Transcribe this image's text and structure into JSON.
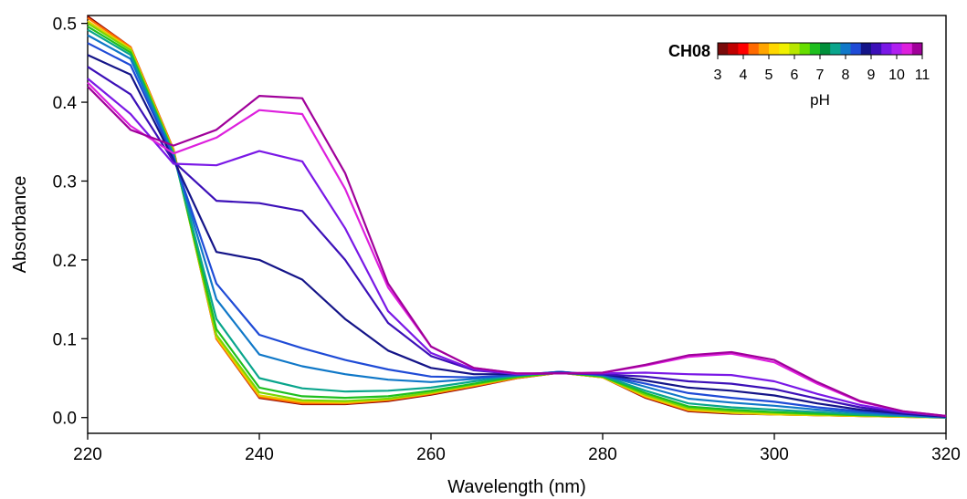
{
  "chart_data": {
    "type": "line",
    "xlabel": "Wavelength (nm)",
    "ylabel": "Absorbance",
    "xlim": [
      220,
      320
    ],
    "ylim": [
      -0.02,
      0.51
    ],
    "xticks": [
      220,
      240,
      260,
      280,
      300,
      320
    ],
    "xtick_labels": [
      "220",
      "240",
      "260",
      "280",
      "300",
      "320"
    ],
    "yticks": [
      0.0,
      0.1,
      0.2,
      0.3,
      0.4,
      0.5
    ],
    "ytick_labels": [
      "0.0",
      "0.1",
      "0.2",
      "0.3",
      "0.4",
      "0.5"
    ],
    "grid": false,
    "legend": {
      "type": "colorbar",
      "placement": "top-right",
      "label": "CH08",
      "title": "pH",
      "ticks": [
        3,
        4,
        5,
        6,
        7,
        8,
        9,
        10,
        11
      ],
      "tick_labels": [
        "3",
        "4",
        "5",
        "6",
        "7",
        "8",
        "9",
        "10",
        "11"
      ],
      "colors": [
        "#7a0a0a",
        "#c00000",
        "#ff0000",
        "#ff6a00",
        "#ffa500",
        "#ffd700",
        "#f0f000",
        "#b8e600",
        "#66dd00",
        "#1fbf1f",
        "#008f3a",
        "#0aa58c",
        "#1078c8",
        "#1f4bd6",
        "#141488",
        "#3c10b8",
        "#7a18e6",
        "#b020f0",
        "#dd20dd",
        "#a0009a"
      ]
    },
    "series": [
      {
        "color": "#8b0000",
        "x": [
          220,
          225,
          230,
          235,
          240,
          245,
          250,
          255,
          260,
          265,
          270,
          275,
          280,
          285,
          290,
          295,
          300,
          305,
          310,
          315,
          320
        ],
        "y": [
          0.509,
          0.47,
          0.34,
          0.1,
          0.025,
          0.017,
          0.017,
          0.021,
          0.029,
          0.039,
          0.05,
          0.057,
          0.051,
          0.025,
          0.008,
          0.005,
          0.004,
          0.003,
          0.002,
          0.001,
          0.0
        ]
      },
      {
        "color": "#ff6a00",
        "x": [
          220,
          225,
          230,
          235,
          240,
          245,
          250,
          255,
          260,
          265,
          270,
          275,
          280,
          285,
          290,
          295,
          300,
          305,
          310,
          315,
          320
        ],
        "y": [
          0.507,
          0.47,
          0.34,
          0.1,
          0.026,
          0.018,
          0.018,
          0.022,
          0.03,
          0.04,
          0.05,
          0.057,
          0.051,
          0.026,
          0.009,
          0.006,
          0.004,
          0.003,
          0.002,
          0.001,
          0.0
        ]
      },
      {
        "color": "#e6d000",
        "x": [
          220,
          225,
          230,
          235,
          240,
          245,
          250,
          255,
          260,
          265,
          270,
          275,
          280,
          285,
          290,
          295,
          300,
          305,
          310,
          315,
          320
        ],
        "y": [
          0.503,
          0.468,
          0.338,
          0.102,
          0.028,
          0.02,
          0.019,
          0.023,
          0.031,
          0.041,
          0.051,
          0.057,
          0.051,
          0.027,
          0.01,
          0.006,
          0.004,
          0.003,
          0.002,
          0.001,
          0.0
        ]
      },
      {
        "color": "#7ad600",
        "x": [
          220,
          225,
          230,
          235,
          240,
          245,
          250,
          255,
          260,
          265,
          270,
          275,
          280,
          285,
          290,
          295,
          300,
          305,
          310,
          315,
          320
        ],
        "y": [
          0.5,
          0.466,
          0.337,
          0.105,
          0.032,
          0.022,
          0.021,
          0.024,
          0.032,
          0.042,
          0.051,
          0.057,
          0.052,
          0.029,
          0.012,
          0.008,
          0.006,
          0.004,
          0.003,
          0.002,
          0.0
        ]
      },
      {
        "color": "#1fbf1f",
        "x": [
          220,
          225,
          230,
          235,
          240,
          245,
          250,
          255,
          260,
          265,
          270,
          275,
          280,
          285,
          290,
          295,
          300,
          305,
          310,
          315,
          320
        ],
        "y": [
          0.496,
          0.463,
          0.335,
          0.112,
          0.038,
          0.027,
          0.025,
          0.027,
          0.034,
          0.043,
          0.052,
          0.057,
          0.052,
          0.031,
          0.014,
          0.01,
          0.007,
          0.005,
          0.003,
          0.002,
          0.0
        ]
      },
      {
        "color": "#0aa58c",
        "x": [
          220,
          225,
          230,
          235,
          240,
          245,
          250,
          255,
          260,
          265,
          270,
          275,
          280,
          285,
          290,
          295,
          300,
          305,
          310,
          315,
          320
        ],
        "y": [
          0.492,
          0.46,
          0.334,
          0.125,
          0.05,
          0.037,
          0.033,
          0.034,
          0.038,
          0.046,
          0.053,
          0.058,
          0.053,
          0.034,
          0.018,
          0.013,
          0.01,
          0.007,
          0.004,
          0.002,
          0.0
        ]
      },
      {
        "color": "#1078c8",
        "x": [
          220,
          225,
          230,
          235,
          240,
          245,
          250,
          255,
          260,
          265,
          270,
          275,
          280,
          285,
          290,
          295,
          300,
          305,
          310,
          315,
          320
        ],
        "y": [
          0.485,
          0.455,
          0.332,
          0.15,
          0.08,
          0.065,
          0.055,
          0.048,
          0.045,
          0.049,
          0.054,
          0.058,
          0.054,
          0.039,
          0.024,
          0.019,
          0.015,
          0.01,
          0.006,
          0.003,
          0.0
        ]
      },
      {
        "color": "#1f4bd6",
        "x": [
          220,
          225,
          230,
          235,
          240,
          245,
          250,
          255,
          260,
          265,
          270,
          275,
          280,
          285,
          290,
          295,
          300,
          305,
          310,
          315,
          320
        ],
        "y": [
          0.475,
          0.447,
          0.33,
          0.17,
          0.105,
          0.088,
          0.073,
          0.061,
          0.052,
          0.051,
          0.054,
          0.058,
          0.054,
          0.043,
          0.031,
          0.025,
          0.02,
          0.013,
          0.008,
          0.004,
          0.001
        ]
      },
      {
        "color": "#141488",
        "x": [
          220,
          225,
          230,
          235,
          240,
          245,
          250,
          255,
          260,
          265,
          270,
          275,
          280,
          285,
          290,
          295,
          300,
          305,
          310,
          315,
          320
        ],
        "y": [
          0.46,
          0.435,
          0.327,
          0.21,
          0.2,
          0.175,
          0.125,
          0.085,
          0.063,
          0.055,
          0.055,
          0.057,
          0.055,
          0.047,
          0.038,
          0.034,
          0.028,
          0.018,
          0.01,
          0.005,
          0.001
        ]
      },
      {
        "color": "#3c10b8",
        "x": [
          220,
          225,
          230,
          235,
          240,
          245,
          250,
          255,
          260,
          265,
          270,
          275,
          280,
          285,
          290,
          295,
          300,
          305,
          310,
          315,
          320
        ],
        "y": [
          0.445,
          0.41,
          0.325,
          0.275,
          0.272,
          0.262,
          0.2,
          0.12,
          0.078,
          0.06,
          0.055,
          0.056,
          0.055,
          0.052,
          0.046,
          0.043,
          0.036,
          0.024,
          0.013,
          0.006,
          0.002
        ]
      },
      {
        "color": "#7a18e6",
        "x": [
          220,
          225,
          230,
          235,
          240,
          245,
          250,
          255,
          260,
          265,
          270,
          275,
          280,
          285,
          290,
          295,
          300,
          305,
          310,
          315,
          320
        ],
        "y": [
          0.43,
          0.385,
          0.322,
          0.32,
          0.338,
          0.325,
          0.24,
          0.135,
          0.082,
          0.061,
          0.055,
          0.056,
          0.056,
          0.057,
          0.055,
          0.054,
          0.046,
          0.03,
          0.016,
          0.007,
          0.002
        ]
      },
      {
        "color": "#dd20dd",
        "x": [
          220,
          225,
          230,
          235,
          240,
          245,
          250,
          255,
          260,
          265,
          270,
          275,
          280,
          285,
          290,
          295,
          300,
          305,
          310,
          315,
          320
        ],
        "y": [
          0.425,
          0.37,
          0.335,
          0.355,
          0.39,
          0.385,
          0.29,
          0.165,
          0.09,
          0.063,
          0.056,
          0.056,
          0.057,
          0.066,
          0.077,
          0.081,
          0.07,
          0.043,
          0.02,
          0.008,
          0.002
        ]
      },
      {
        "color": "#a0009a",
        "x": [
          220,
          225,
          230,
          235,
          240,
          245,
          250,
          255,
          260,
          265,
          270,
          275,
          280,
          285,
          290,
          295,
          300,
          305,
          310,
          315,
          320
        ],
        "y": [
          0.42,
          0.365,
          0.345,
          0.365,
          0.408,
          0.405,
          0.31,
          0.17,
          0.09,
          0.063,
          0.056,
          0.056,
          0.057,
          0.067,
          0.079,
          0.083,
          0.073,
          0.045,
          0.021,
          0.008,
          0.002
        ]
      }
    ]
  }
}
